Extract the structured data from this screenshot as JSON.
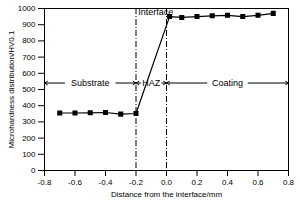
{
  "chart_data": {
    "type": "line",
    "color": "#000000",
    "marker": "square",
    "xlabel": "Distance from the interface/mm",
    "ylabel": "Microhardness distribution/HV0.1",
    "x": [
      -0.7,
      -0.6,
      -0.5,
      -0.4,
      -0.3,
      -0.2,
      0.02,
      0.1,
      0.2,
      0.3,
      0.4,
      0.5,
      0.6,
      0.7
    ],
    "values": [
      355,
      355,
      356,
      358,
      348,
      352,
      950,
      945,
      950,
      955,
      958,
      950,
      958,
      970
    ],
    "xlim": [
      -0.8,
      0.8
    ],
    "ylim": [
      0,
      1000
    ],
    "xticks": [
      -0.8,
      -0.6,
      -0.4,
      -0.2,
      {
        "value": 0,
        "label": "0.0"
      },
      0.2,
      0.4,
      0.6,
      0.8
    ],
    "yticks": [
      0,
      100,
      200,
      300,
      400,
      500,
      600,
      700,
      800,
      900,
      1000
    ],
    "vlines": [
      -0.2,
      0
    ],
    "annotations": [
      {
        "text": "Interface",
        "x": -0.07,
        "y": 975
      },
      {
        "text": "Substrate",
        "x_range": [
          -0.8,
          -0.2
        ],
        "y": 540
      },
      {
        "text": "HAZ",
        "x_range": [
          -0.2,
          0
        ],
        "y": 540
      },
      {
        "text": "Coating",
        "x_range": [
          0,
          0.8
        ],
        "y": 540
      }
    ]
  }
}
